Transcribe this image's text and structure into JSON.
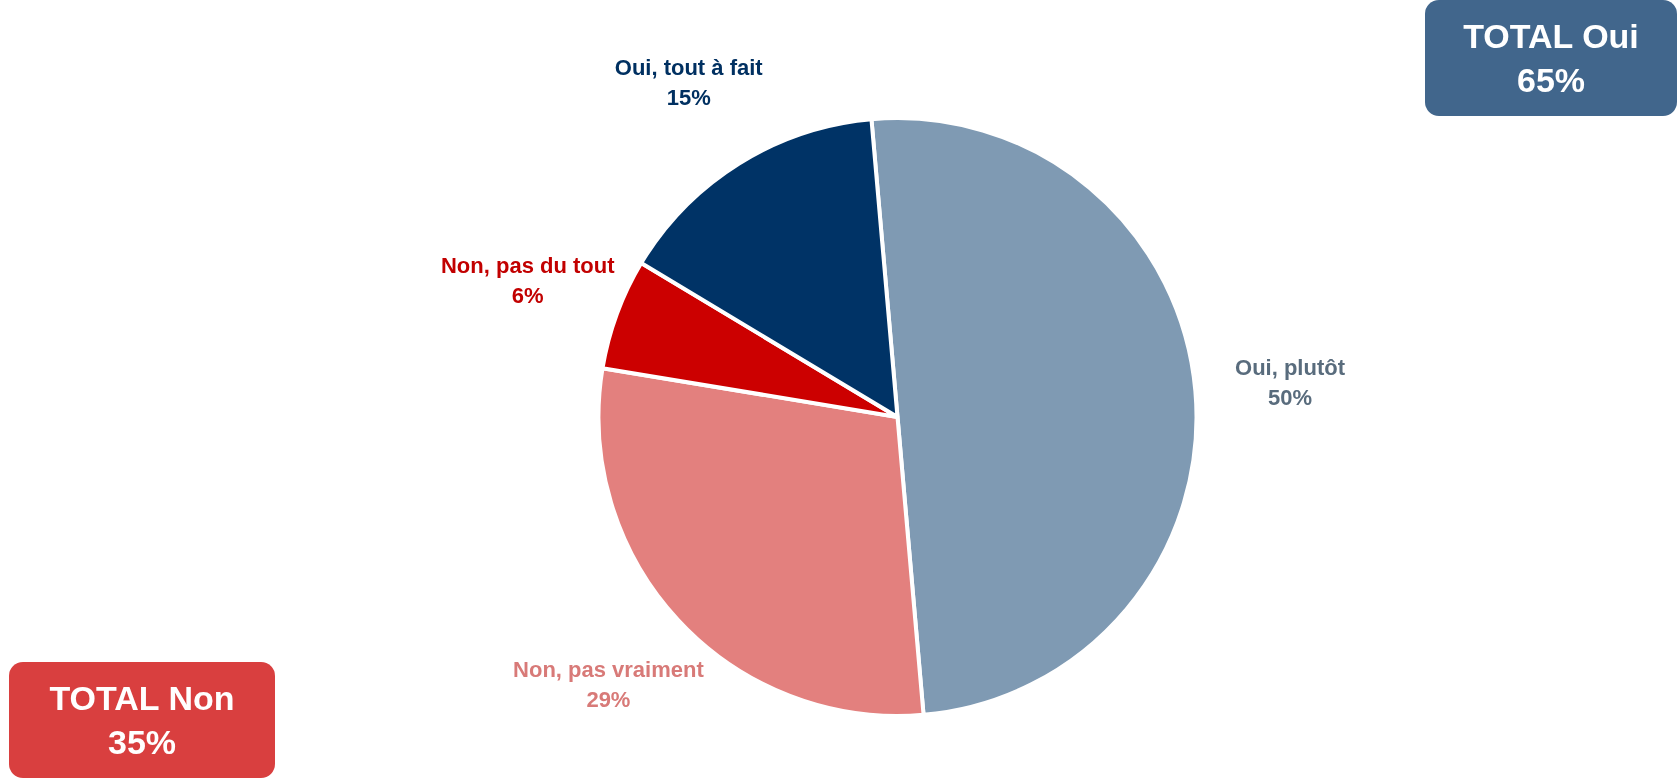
{
  "chart_data": {
    "type": "pie",
    "categories": [
      "Oui, plutôt",
      "Non, pas vraiment",
      "Non, pas du tout",
      "Oui, tout à fait"
    ],
    "values": [
      50,
      29,
      6,
      15
    ],
    "colors": [
      "#7f9ab3",
      "#e3807e",
      "#cc0000",
      "#003366"
    ],
    "value_labels": [
      "50%",
      "29%",
      "6%",
      "15%"
    ],
    "legend": false,
    "annotations": [
      "TOTAL Oui 65%",
      "TOTAL Non 35%"
    ]
  }
}
